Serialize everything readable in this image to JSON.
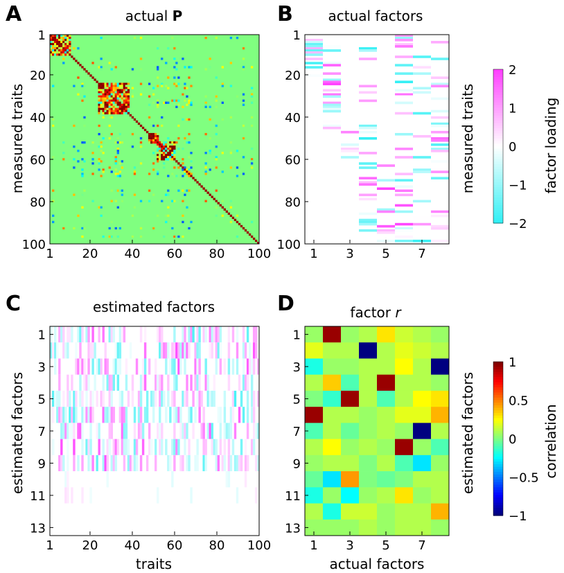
{
  "colors": {
    "background_green": "#7ee27a",
    "diagonal": "#8b0000",
    "pink": "#ff40ff",
    "cyan": "#33f0f5",
    "dark_blue": "#0a0a8c",
    "dark_red": "#8b0000"
  },
  "chart_data": [
    {
      "panel": "A",
      "type": "heatmap",
      "title": "actual",
      "title_bold": "P",
      "xlabel": "",
      "ylabel": "measured traits",
      "xticks": [
        "1",
        "20",
        "40",
        "60",
        "80",
        "100"
      ],
      "yticks": [
        "1",
        "20",
        "40",
        "60",
        "80",
        "100"
      ],
      "xlim": [
        1,
        100
      ],
      "ylim": [
        1,
        100
      ],
      "colormap": "jet",
      "description_values": {
        "diagonal": 1,
        "dense_blocks": [
          [
            1,
            10
          ],
          [
            24,
            38
          ],
          [
            48,
            52
          ],
          [
            52,
            60
          ],
          [
            65,
            67
          ]
        ]
      }
    },
    {
      "panel": "B",
      "type": "heatmap",
      "title": "actual factors",
      "xlabel": "",
      "ylabel": "measured traits",
      "xticks": [
        "1",
        "3",
        "5",
        "7"
      ],
      "yticks": [
        "1",
        "20",
        "40",
        "60",
        "80",
        "100"
      ],
      "xlim": [
        1,
        8
      ],
      "ylim": [
        1,
        100
      ],
      "colormap": "cyan-white-magenta",
      "colorbar": {
        "label": "factor loading",
        "ticks": [
          "2",
          "1",
          "0",
          "−1",
          "−2"
        ],
        "range": [
          -2,
          2
        ]
      },
      "factor_trait_ranges": [
        [
          1,
          20
        ],
        [
          1,
          45
        ],
        [
          45,
          60
        ],
        [
          1,
          95
        ],
        [
          60,
          100
        ],
        [
          1,
          100
        ],
        [
          1,
          100
        ],
        [
          1,
          100
        ]
      ]
    },
    {
      "panel": "C",
      "type": "heatmap",
      "title": "estimated factors",
      "xlabel": "traits",
      "ylabel": "estimated factors",
      "xticks": [
        "1",
        "20",
        "40",
        "60",
        "80",
        "100"
      ],
      "yticks": [
        "1",
        "3",
        "5",
        "7",
        "9",
        "11",
        "13"
      ],
      "xlim": [
        1,
        100
      ],
      "ylim": [
        1,
        13
      ],
      "colormap": "cyan-white-magenta"
    },
    {
      "panel": "D",
      "type": "heatmap",
      "title": "factor",
      "title_italic": "r",
      "xlabel": "actual factors",
      "ylabel": "estimated factors",
      "xticks": [
        "1",
        "3",
        "5",
        "7"
      ],
      "yticks": [
        "1",
        "3",
        "5",
        "7",
        "9",
        "11",
        "13"
      ],
      "colorbar": {
        "label": "correlation",
        "ticks": [
          "1",
          "0.5",
          "0",
          "−0.5",
          "−1"
        ],
        "range": [
          -1,
          1
        ]
      },
      "rows": 13,
      "cols": 8,
      "values": [
        [
          0.05,
          0.95,
          0.05,
          0.1,
          0.3,
          0.15,
          0.1,
          0.05
        ],
        [
          0.2,
          0.1,
          0.1,
          -1.0,
          0.1,
          0.2,
          0.15,
          0.1
        ],
        [
          -0.2,
          0.05,
          0.05,
          0.1,
          0.1,
          0.25,
          0.1,
          -1.0
        ],
        [
          0.1,
          0.35,
          -0.1,
          0.1,
          0.95,
          0.1,
          0.1,
          0.05
        ],
        [
          0.0,
          -0.15,
          0.95,
          0.1,
          -0.1,
          0.1,
          0.25,
          0.3
        ],
        [
          0.95,
          0.1,
          0.1,
          0.05,
          0.1,
          0.2,
          0.2,
          0.4
        ],
        [
          -0.1,
          0.1,
          -0.05,
          0.05,
          0.1,
          0.05,
          -1.0,
          0.1
        ],
        [
          0.1,
          0.25,
          0.05,
          0.1,
          0.05,
          0.95,
          0.05,
          -0.1
        ],
        [
          0.05,
          0.1,
          0.1,
          0.0,
          0.1,
          -0.1,
          -0.3,
          0.05
        ],
        [
          -0.05,
          -0.3,
          0.45,
          0.0,
          -0.05,
          0.0,
          0.1,
          0.1
        ],
        [
          -0.2,
          0.05,
          -0.25,
          0.05,
          0.1,
          0.3,
          0.05,
          0.1
        ],
        [
          0.1,
          -0.2,
          0.15,
          0.15,
          0.05,
          0.1,
          0.1,
          0.4
        ],
        [
          0.05,
          0.05,
          0.05,
          0.1,
          0.05,
          0.1,
          0.1,
          0.05
        ]
      ]
    }
  ],
  "panel_labels": [
    "A",
    "B",
    "C",
    "D"
  ]
}
